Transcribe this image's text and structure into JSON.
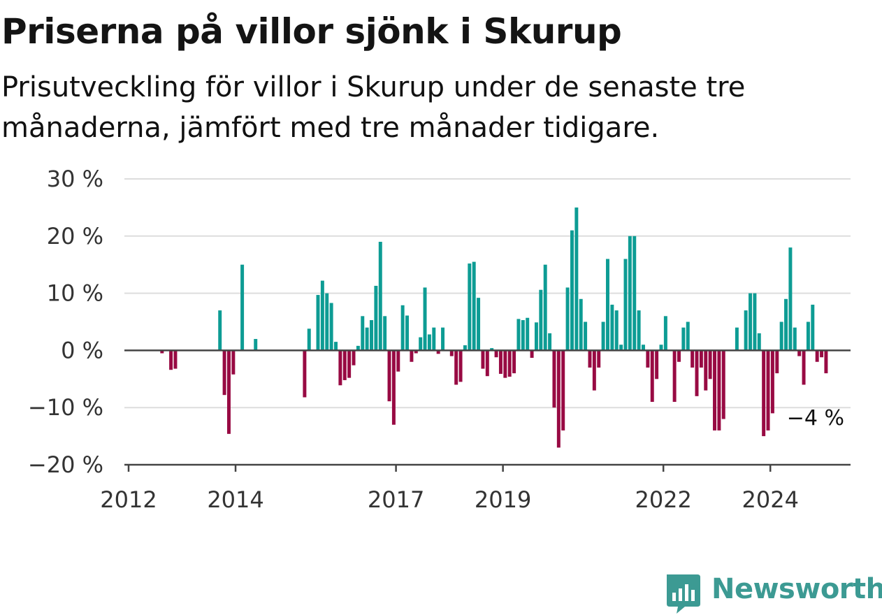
{
  "title": "Priserna på villor sjönk i Skurup",
  "subtitle": "Prisutveckling för villor i Skurup under de senaste tre månaderna, jämfört med tre månader tidigare.",
  "brand": {
    "name": "Newsworthy",
    "icon": "newsworthy-chart-icon",
    "color": "#3c9a93"
  },
  "colors": {
    "positive": "#0d9c94",
    "negative": "#980a43",
    "grid": "#dddddd",
    "axis": "#444444"
  },
  "chart_data": {
    "type": "bar",
    "title": "Priserna på villor sjönk i Skurup",
    "xlabel": "",
    "ylabel": "",
    "ylim": [
      -20,
      30
    ],
    "y_ticks": [
      30,
      20,
      10,
      0,
      -10,
      -20
    ],
    "y_tick_labels": [
      "30 %",
      "20 %",
      "10 %",
      "0 %",
      "−10 %",
      "−20 %"
    ],
    "x_ticks": [
      "2012",
      "2014",
      "2017",
      "2019",
      "2022",
      "2024"
    ],
    "x_tick_dates": [
      "2012-01",
      "2014-01",
      "2017-01",
      "2019-01",
      "2022-01",
      "2024-01"
    ],
    "last_label": "−4 %",
    "grid": true,
    "legend": "none",
    "series": [
      {
        "values": [
          [
            "2012-08",
            -0.5
          ],
          [
            "2012-10",
            -3.4
          ],
          [
            "2012-11",
            -3.2
          ],
          [
            "2013-09",
            7.0
          ],
          [
            "2013-10",
            -7.8
          ],
          [
            "2013-11",
            -14.6
          ],
          [
            "2013-12",
            -4.2
          ],
          [
            "2014-02",
            15.0
          ],
          [
            "2014-05",
            2.0
          ],
          [
            "2015-04",
            -8.2
          ],
          [
            "2015-05",
            3.8
          ],
          [
            "2015-07",
            9.7
          ],
          [
            "2015-08",
            12.2
          ],
          [
            "2015-09",
            10.0
          ],
          [
            "2015-10",
            8.3
          ],
          [
            "2015-11",
            1.5
          ],
          [
            "2015-12",
            -6.1
          ],
          [
            "2016-01",
            -5.2
          ],
          [
            "2016-02",
            -4.8
          ],
          [
            "2016-03",
            -2.6
          ],
          [
            "2016-04",
            0.8
          ],
          [
            "2016-05",
            6.0
          ],
          [
            "2016-06",
            4.0
          ],
          [
            "2016-07",
            5.3
          ],
          [
            "2016-08",
            11.3
          ],
          [
            "2016-09",
            19.0
          ],
          [
            "2016-10",
            6.0
          ],
          [
            "2016-11",
            -8.9
          ],
          [
            "2016-12",
            -13.0
          ],
          [
            "2017-01",
            -3.7
          ],
          [
            "2017-02",
            7.9
          ],
          [
            "2017-03",
            6.1
          ],
          [
            "2017-04",
            -2.0
          ],
          [
            "2017-05",
            -0.5
          ],
          [
            "2017-06",
            2.3
          ],
          [
            "2017-07",
            11.0
          ],
          [
            "2017-08",
            2.8
          ],
          [
            "2017-09",
            4.0
          ],
          [
            "2017-10",
            -0.6
          ],
          [
            "2017-11",
            4.0
          ],
          [
            "2017-12",
            0.1
          ],
          [
            "2018-01",
            -1.0
          ],
          [
            "2018-02",
            -6.0
          ],
          [
            "2018-03",
            -5.5
          ],
          [
            "2018-04",
            0.9
          ],
          [
            "2018-05",
            15.2
          ],
          [
            "2018-06",
            15.5
          ],
          [
            "2018-07",
            9.2
          ],
          [
            "2018-08",
            -3.2
          ],
          [
            "2018-09",
            -4.5
          ],
          [
            "2018-10",
            0.4
          ],
          [
            "2018-11",
            -1.2
          ],
          [
            "2018-12",
            -4.1
          ],
          [
            "2019-01",
            -4.8
          ],
          [
            "2019-02",
            -4.6
          ],
          [
            "2019-03",
            -4.0
          ],
          [
            "2019-04",
            5.5
          ],
          [
            "2019-05",
            5.3
          ],
          [
            "2019-06",
            5.7
          ],
          [
            "2019-07",
            -1.3
          ],
          [
            "2019-08",
            4.9
          ],
          [
            "2019-09",
            10.6
          ],
          [
            "2019-10",
            15.0
          ],
          [
            "2019-11",
            3.0
          ],
          [
            "2019-12",
            -10.0
          ],
          [
            "2020-01",
            -17.0
          ],
          [
            "2020-02",
            -14.0
          ],
          [
            "2020-03",
            11.0
          ],
          [
            "2020-04",
            21.0
          ],
          [
            "2020-05",
            25.0
          ],
          [
            "2020-06",
            9.0
          ],
          [
            "2020-07",
            5.0
          ],
          [
            "2020-08",
            -3.0
          ],
          [
            "2020-09",
            -7.0
          ],
          [
            "2020-10",
            -3.0
          ],
          [
            "2020-11",
            5.0
          ],
          [
            "2020-12",
            16.0
          ],
          [
            "2021-01",
            8.0
          ],
          [
            "2021-02",
            7.0
          ],
          [
            "2021-03",
            1.0
          ],
          [
            "2021-04",
            16.0
          ],
          [
            "2021-05",
            20.0
          ],
          [
            "2021-06",
            20.0
          ],
          [
            "2021-07",
            7.0
          ],
          [
            "2021-08",
            1.0
          ],
          [
            "2021-09",
            -3.0
          ],
          [
            "2021-10",
            -9.0
          ],
          [
            "2021-11",
            -5.0
          ],
          [
            "2021-12",
            1.0
          ],
          [
            "2022-01",
            6.0
          ],
          [
            "2022-03",
            -9.0
          ],
          [
            "2022-04",
            -2.0
          ],
          [
            "2022-05",
            4.0
          ],
          [
            "2022-06",
            5.0
          ],
          [
            "2022-07",
            -3.0
          ],
          [
            "2022-08",
            -8.0
          ],
          [
            "2022-09",
            -3.0
          ],
          [
            "2022-10",
            -7.0
          ],
          [
            "2022-11",
            -5.0
          ],
          [
            "2022-12",
            -14.0
          ],
          [
            "2023-01",
            -14.0
          ],
          [
            "2023-02",
            -12.0
          ],
          [
            "2023-05",
            4.0
          ],
          [
            "2023-07",
            7.0
          ],
          [
            "2023-08",
            10.0
          ],
          [
            "2023-09",
            10.0
          ],
          [
            "2023-10",
            3.0
          ],
          [
            "2023-11",
            -15.0
          ],
          [
            "2023-12",
            -14.0
          ],
          [
            "2024-01",
            -11.0
          ],
          [
            "2024-02",
            -4.0
          ],
          [
            "2024-03",
            5.0
          ],
          [
            "2024-04",
            9.0
          ],
          [
            "2024-05",
            18.0
          ],
          [
            "2024-06",
            4.0
          ],
          [
            "2024-07",
            -1.0
          ],
          [
            "2024-08",
            -6.0
          ],
          [
            "2024-09",
            5.0
          ],
          [
            "2024-10",
            8.0
          ],
          [
            "2024-11",
            -2.0
          ],
          [
            "2024-12",
            -1.2
          ],
          [
            "2025-01",
            -4.0
          ]
        ]
      }
    ]
  }
}
